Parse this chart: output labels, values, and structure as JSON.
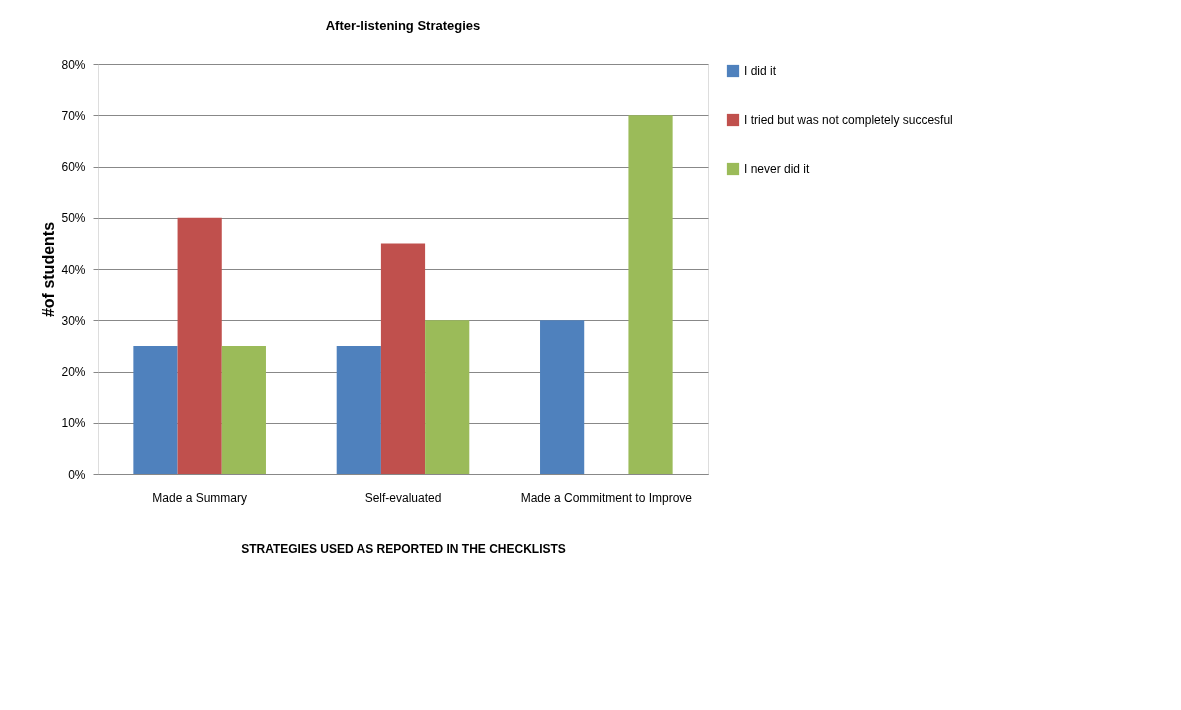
{
  "chart_data": {
    "type": "bar",
    "title": "After-listening Strategies",
    "xlabel": "STRATEGIES USED AS REPORTED IN THE CHECKLISTS",
    "ylabel": "#of students",
    "categories": [
      "Made a Summary",
      "Self-evaluated",
      "Made a Commitment to Improve"
    ],
    "series": [
      {
        "name": "I did it",
        "color": "#4f81bd",
        "values": [
          25,
          25,
          30
        ]
      },
      {
        "name": "I tried but was not completely succesful",
        "color": "#c0504d",
        "values": [
          50,
          45,
          0
        ]
      },
      {
        "name": "I never did it",
        "color": "#9bbb59",
        "values": [
          25,
          30,
          70
        ]
      }
    ],
    "ylim": [
      0,
      80
    ],
    "yticks": [
      {
        "value": 0,
        "label": "0%"
      },
      {
        "value": 10,
        "label": "10%"
      },
      {
        "value": 20,
        "label": "20%"
      },
      {
        "value": 30,
        "label": "30%"
      },
      {
        "value": 40,
        "label": "40%"
      },
      {
        "value": 50,
        "label": "50%"
      },
      {
        "value": 60,
        "label": "60%"
      },
      {
        "value": 70,
        "label": "70%"
      },
      {
        "value": 80,
        "label": "80%"
      }
    ],
    "grid": "y",
    "legend": "right"
  }
}
